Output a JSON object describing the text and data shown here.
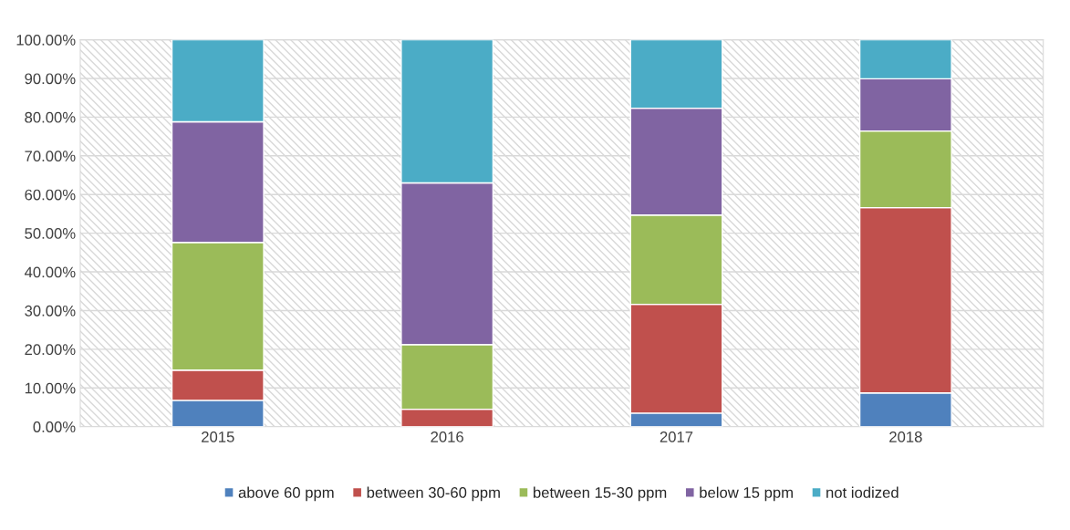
{
  "chart_data": {
    "type": "bar",
    "stacked": true,
    "categories": [
      "2015",
      "2016",
      "2017",
      "2018"
    ],
    "series": [
      {
        "name": "above 60 ppm",
        "color": "#4f81bd",
        "values": [
          6.8,
          0,
          3.5,
          8.7
        ]
      },
      {
        "name": "between 30-60 ppm",
        "color": "#c0504d",
        "values": [
          7.8,
          4.5,
          28.1,
          47.9
        ]
      },
      {
        "name": "between 15-30 ppm",
        "color": "#9bbb59",
        "values": [
          33.0,
          16.7,
          23.1,
          19.8
        ]
      },
      {
        "name": "below 15 ppm",
        "color": "#8064a2",
        "values": [
          31.2,
          41.8,
          27.6,
          13.5
        ]
      },
      {
        "name": "not iodized",
        "color": "#4bacc6",
        "values": [
          21.2,
          37.0,
          17.7,
          10.1
        ]
      }
    ],
    "ylim": [
      0,
      100
    ],
    "yticks": [
      {
        "value": 0,
        "label": "0.00%"
      },
      {
        "value": 10,
        "label": "10.00%"
      },
      {
        "value": 20,
        "label": "20.00%"
      },
      {
        "value": 30,
        "label": "30.00%"
      },
      {
        "value": 40,
        "label": "40.00%"
      },
      {
        "value": 50,
        "label": "50.00%"
      },
      {
        "value": 60,
        "label": "60.00%"
      },
      {
        "value": 70,
        "label": "70.00%"
      },
      {
        "value": 80,
        "label": "80.00%"
      },
      {
        "value": 90,
        "label": "90.00%"
      },
      {
        "value": 100,
        "label": "100.00%"
      }
    ],
    "grid": true,
    "legend": "bottom"
  }
}
